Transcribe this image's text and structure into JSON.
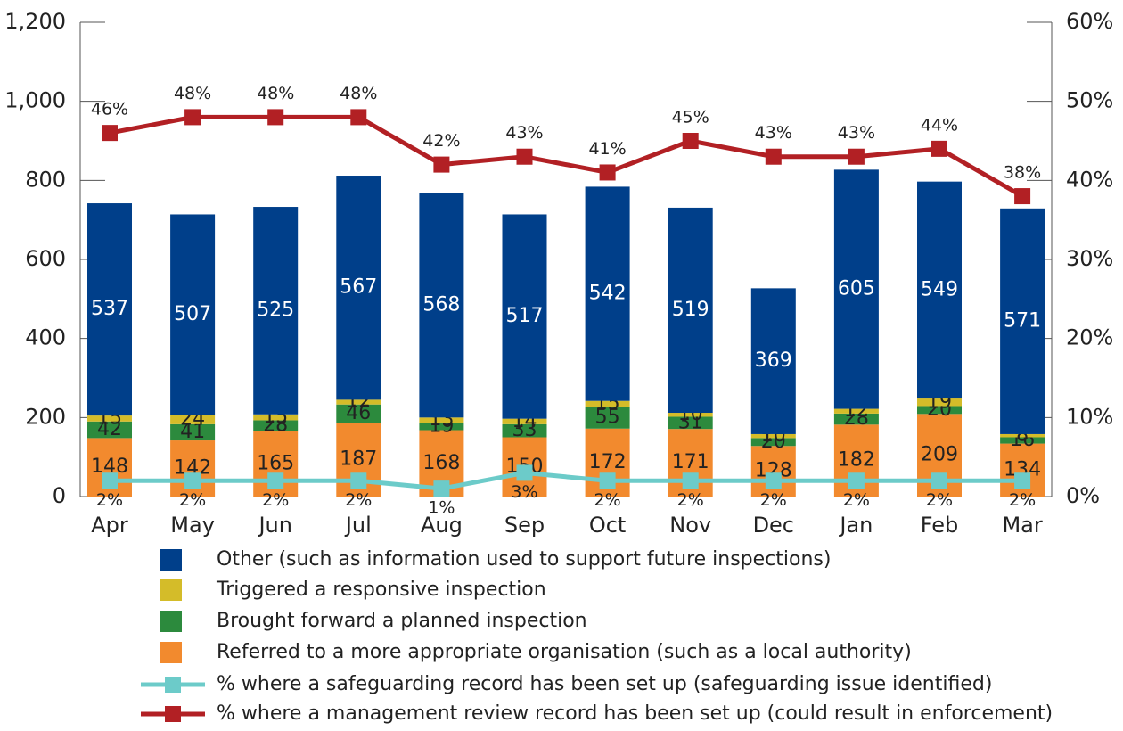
{
  "chart_data": {
    "type": "bar",
    "categories": [
      "Apr",
      "May",
      "Jun",
      "Jul",
      "Aug",
      "Sep",
      "Oct",
      "Nov",
      "Dec",
      "Jan",
      "Feb",
      "Mar"
    ],
    "stacked": true,
    "series": [
      {
        "name": "Other (such as information used to support future inspections)",
        "color": "#003f8a",
        "values": [
          537,
          507,
          525,
          567,
          568,
          517,
          542,
          519,
          369,
          605,
          549,
          571
        ]
      },
      {
        "name": "Triggered a responsive inspection",
        "color": "#d4bc29",
        "values": [
          15,
          24,
          15,
          12,
          13,
          14,
          15,
          10,
          10,
          12,
          19,
          8
        ]
      },
      {
        "name": "Brought forward a planned inspection",
        "color": "#2c8a3d",
        "values": [
          42,
          41,
          28,
          46,
          19,
          33,
          55,
          31,
          20,
          28,
          20,
          16
        ]
      },
      {
        "name": "Referred to a more appropriate organisation (such as a local authority)",
        "color": "#f28a2e",
        "values": [
          148,
          142,
          165,
          187,
          168,
          150,
          172,
          171,
          128,
          182,
          209,
          134
        ]
      },
      {
        "name": "% where a safeguarding record has been set up (safeguarding issue identified)",
        "type": "line",
        "axis": "y2",
        "color": "#6ccbc9",
        "values": [
          2,
          2,
          2,
          2,
          1,
          3,
          2,
          2,
          2,
          2,
          2,
          2
        ],
        "value_labels": [
          "2%",
          "2%",
          "2%",
          "2%",
          "1%",
          "3%",
          "2%",
          "2%",
          "2%",
          "2%",
          "2%",
          "2%"
        ]
      },
      {
        "name": "% where a management review record has been set up (could result in enforcement)",
        "type": "line",
        "axis": "y2",
        "color": "#b22024",
        "values": [
          46,
          48,
          48,
          48,
          42,
          43,
          41,
          45,
          43,
          43,
          44,
          38
        ],
        "value_labels": [
          "46%",
          "48%",
          "48%",
          "48%",
          "42%",
          "43%",
          "41%",
          "45%",
          "43%",
          "43%",
          "44%",
          "38%"
        ]
      }
    ],
    "ylim": [
      0,
      1200
    ],
    "yticks": [
      0,
      200,
      400,
      600,
      800,
      {
        "value": 1000,
        "label": "1,000"
      },
      {
        "value": 1200,
        "label": "1,200"
      }
    ],
    "y2lim": [
      0,
      60
    ],
    "y2ticks": [
      {
        "value": 0,
        "label": "0%"
      },
      {
        "value": 10,
        "label": "10%"
      },
      {
        "value": 20,
        "label": "20%"
      },
      {
        "value": 30,
        "label": "30%"
      },
      {
        "value": 40,
        "label": "40%"
      },
      {
        "value": 50,
        "label": "50%"
      },
      {
        "value": 60,
        "label": "60%"
      }
    ]
  }
}
